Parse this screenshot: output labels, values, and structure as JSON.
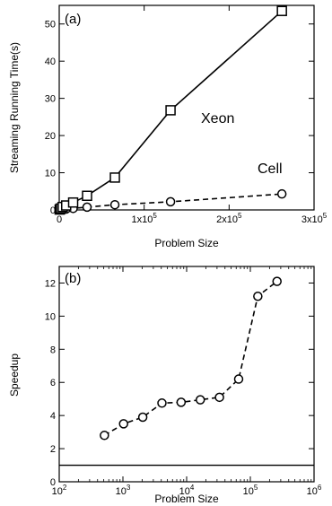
{
  "chart_data": [
    {
      "type": "line",
      "panel_label": "(a)",
      "xlabel": "Problem Size",
      "ylabel": "Streaming Running Time(s)",
      "xlim": [
        0,
        300000
      ],
      "ylim": [
        0,
        55
      ],
      "x_ticks": [
        {
          "value": 0,
          "mant": "0",
          "exp": ""
        },
        {
          "value": 100000,
          "mant": "1x10",
          "exp": "5"
        },
        {
          "value": 200000,
          "mant": "2x10",
          "exp": "5"
        },
        {
          "value": 300000,
          "mant": "3x10",
          "exp": "5"
        }
      ],
      "y_ticks": [
        {
          "value": 0,
          "label": "0"
        },
        {
          "value": 10,
          "label": "10"
        },
        {
          "value": 20,
          "label": "20"
        },
        {
          "value": 30,
          "label": "30"
        },
        {
          "value": 40,
          "label": "40"
        },
        {
          "value": 50,
          "label": "50"
        }
      ],
      "grid": false,
      "series": [
        {
          "name": "Xeon",
          "marker": "square",
          "line_style": "solid",
          "x": [
            512,
            1024,
            2048,
            4096,
            8192,
            16384,
            32768,
            65536,
            131072,
            262144
          ],
          "y": [
            0.1,
            0.2,
            0.4,
            0.8,
            1.2,
            2.0,
            3.8,
            8.7,
            26.8,
            53.5
          ]
        },
        {
          "name": "Cell",
          "marker": "circle",
          "line_style": "dashed",
          "x": [
            512,
            1024,
            2048,
            4096,
            8192,
            16384,
            32768,
            65536,
            131072,
            262144
          ],
          "y": [
            0.04,
            0.06,
            0.1,
            0.17,
            0.25,
            0.4,
            0.75,
            1.4,
            2.2,
            4.3
          ]
        }
      ]
    },
    {
      "type": "line",
      "panel_label": "(b)",
      "xlabel": "Problem Size",
      "ylabel": "Speedup",
      "x_scale": "log",
      "xlim": [
        100,
        1000000
      ],
      "ylim": [
        0,
        13
      ],
      "x_ticks": [
        {
          "value": 100,
          "mant": "10",
          "exp": "2"
        },
        {
          "value": 1000,
          "mant": "10",
          "exp": "3"
        },
        {
          "value": 10000,
          "mant": "10",
          "exp": "4"
        },
        {
          "value": 100000,
          "mant": "10",
          "exp": "5"
        },
        {
          "value": 1000000,
          "mant": "10",
          "exp": "6"
        }
      ],
      "y_ticks": [
        {
          "value": 0,
          "label": "0"
        },
        {
          "value": 2,
          "label": "2"
        },
        {
          "value": 4,
          "label": "4"
        },
        {
          "value": 6,
          "label": "6"
        },
        {
          "value": 8,
          "label": "8"
        },
        {
          "value": 10,
          "label": "10"
        },
        {
          "value": 12,
          "label": "12"
        }
      ],
      "grid": false,
      "reference_line": {
        "y": 1,
        "line_style": "solid"
      },
      "series": [
        {
          "name": "",
          "marker": "circle",
          "line_style": "dashed",
          "x": [
            512,
            1024,
            2048,
            4096,
            8192,
            16384,
            32768,
            65536,
            131072,
            262144
          ],
          "y": [
            2.8,
            3.5,
            3.9,
            4.75,
            4.8,
            4.95,
            5.1,
            6.2,
            11.2,
            12.1
          ]
        }
      ]
    }
  ]
}
